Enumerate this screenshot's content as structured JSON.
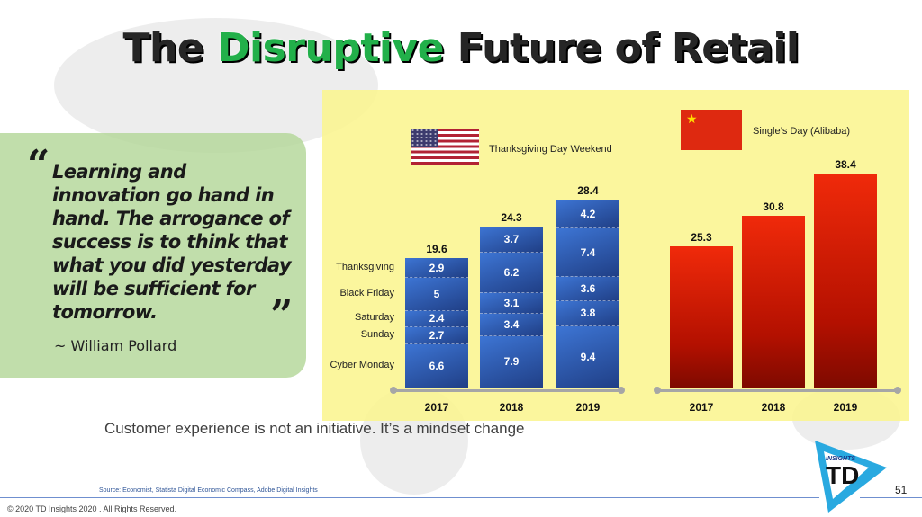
{
  "title": {
    "part1": "The ",
    "highlight": "Disruptive",
    "part2": " Future of Retail"
  },
  "quote": {
    "text": "Learning and innovation go hand in hand. The arrogance of success is to think that what you did yesterday will be sufficient for tomorrow.",
    "author": "~ William Pollard"
  },
  "tagline": "Customer experience is not an initiative. It’s a mindset change",
  "source": "Source: Economist, Statista Digital Economic Compass, Adobe Digital Insights",
  "copyright": "© 2020 TD Insights 2020 . All Rights Reserved.",
  "page_number": "51",
  "logo": {
    "text": "INSIGHTS TD"
  },
  "chart_data": [
    {
      "type": "bar",
      "stacked": true,
      "title": "Thanksgiving Day Weekend",
      "flag": "united-states-flag-icon",
      "categories": [
        "2017",
        "2018",
        "2019"
      ],
      "totals": [
        19.6,
        24.3,
        28.4
      ],
      "series": [
        {
          "name": "Thanksgiving",
          "values": [
            2.9,
            3.7,
            4.2
          ]
        },
        {
          "name": "Black Friday",
          "values": [
            5,
            6.2,
            7.4
          ]
        },
        {
          "name": "Saturday",
          "values": [
            2.4,
            3.1,
            3.6
          ]
        },
        {
          "name": "Sunday",
          "values": [
            2.7,
            3.4,
            3.8
          ]
        },
        {
          "name": "Cyber Monday",
          "values": [
            6.6,
            7.9,
            9.4
          ]
        }
      ],
      "color": "#2f5cb8"
    },
    {
      "type": "bar",
      "title": "Single’s Day (Alibaba)",
      "flag": "china-flag-icon",
      "categories": [
        "2017",
        "2018",
        "2019"
      ],
      "values": [
        25.3,
        30.8,
        38.4
      ],
      "color": "#e01b00"
    }
  ]
}
